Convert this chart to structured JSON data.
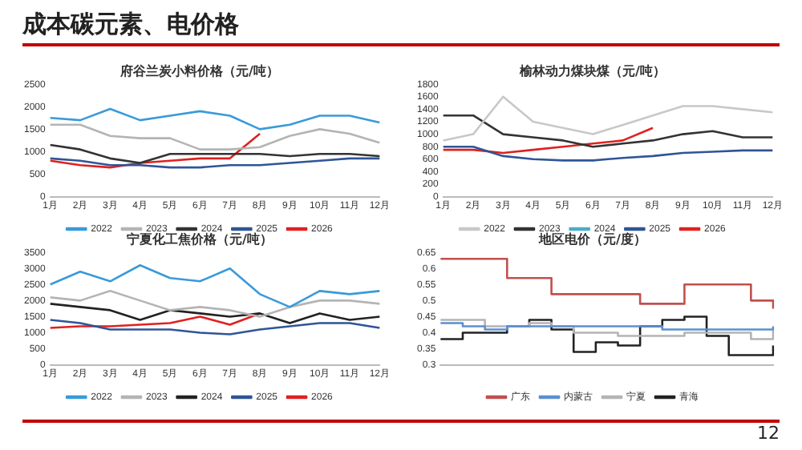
{
  "chart_data": [
    {
      "type": "other",
      "title": "成本碳元素、电价格",
      "annotations": [
        "12"
      ]
    },
    {
      "type": "line",
      "title": "府谷兰炭小料价格（元/吨）",
      "categories": [
        "1月",
        "2月",
        "3月",
        "4月",
        "5月",
        "6月",
        "7月",
        "8月",
        "9月",
        "10月",
        "11月",
        "12月"
      ],
      "ylim": [
        0,
        2500
      ],
      "yticks": [
        0,
        500,
        1000,
        1500,
        2000,
        2500
      ],
      "marker": "none",
      "legend": "bottom",
      "series": [
        {
          "name": "2022",
          "color": "#3a9ad9",
          "values": [
            1750,
            1700,
            1950,
            1700,
            1800,
            1900,
            1800,
            1500,
            1600,
            1800,
            1800,
            1650
          ]
        },
        {
          "name": "2023",
          "color": "#b4b4b4",
          "values": [
            1600,
            1600,
            1350,
            1300,
            1300,
            1050,
            1050,
            1100,
            1350,
            1500,
            1400,
            1200
          ]
        },
        {
          "name": "2024",
          "color": "#333333",
          "values": [
            1150,
            1050,
            850,
            750,
            950,
            950,
            950,
            950,
            900,
            950,
            950,
            900
          ]
        },
        {
          "name": "2025",
          "color": "#2f5597",
          "values": [
            850,
            800,
            700,
            700,
            650,
            650,
            700,
            700,
            750,
            800,
            850,
            850
          ]
        },
        {
          "name": "2026",
          "color": "#e02020",
          "values": [
            800,
            700,
            650,
            750,
            800,
            850,
            850,
            1400,
            null,
            null,
            null,
            null
          ]
        }
      ]
    },
    {
      "type": "line",
      "title": "榆林动力煤块煤（元/吨）",
      "categories": [
        "1月",
        "2月",
        "3月",
        "4月",
        "5月",
        "6月",
        "7月",
        "8月",
        "9月",
        "10月",
        "11月",
        "12月"
      ],
      "ylim": [
        0,
        1800
      ],
      "yticks": [
        0,
        200,
        400,
        600,
        800,
        1000,
        1200,
        1400,
        1600,
        1800
      ],
      "marker": "none",
      "legend": "bottom",
      "series": [
        {
          "name": "2022",
          "color": "#c8c8c8",
          "values": [
            900,
            1000,
            1600,
            1200,
            1100,
            1000,
            1150,
            1300,
            1450,
            1450,
            1400,
            1350
          ]
        },
        {
          "name": "2023",
          "color": "#333333",
          "values": [
            1300,
            1300,
            1000,
            950,
            900,
            800,
            850,
            900,
            1000,
            1050,
            950,
            950
          ]
        },
        {
          "name": "2024",
          "color": "#4bacc6",
          "values": [
            null,
            null,
            null,
            null,
            null,
            null,
            null,
            null,
            null,
            null,
            null,
            null
          ]
        },
        {
          "name": "2025",
          "color": "#2f5597",
          "values": [
            800,
            800,
            650,
            600,
            580,
            580,
            620,
            650,
            700,
            720,
            740,
            740
          ]
        },
        {
          "name": "2026",
          "color": "#e02020",
          "values": [
            750,
            750,
            700,
            750,
            800,
            850,
            900,
            1100,
            null,
            null,
            null,
            null
          ]
        }
      ]
    },
    {
      "type": "line",
      "title": "宁夏化工焦价格（元/吨）",
      "categories": [
        "1月",
        "2月",
        "3月",
        "4月",
        "5月",
        "6月",
        "7月",
        "8月",
        "9月",
        "10月",
        "11月",
        "12月"
      ],
      "ylim": [
        0,
        3500
      ],
      "yticks": [
        0,
        500,
        1000,
        1500,
        2000,
        2500,
        3000,
        3500
      ],
      "marker": "none",
      "legend": "bottom",
      "series": [
        {
          "name": "2022",
          "color": "#3a9ad9",
          "values": [
            2500,
            2900,
            2600,
            3100,
            2700,
            2600,
            3000,
            2200,
            1800,
            2300,
            2200,
            2300
          ]
        },
        {
          "name": "2023",
          "color": "#b4b4b4",
          "values": [
            2100,
            2000,
            2300,
            2000,
            1700,
            1800,
            1700,
            1500,
            1800,
            2000,
            2000,
            1900
          ]
        },
        {
          "name": "2024",
          "color": "#222222",
          "values": [
            1900,
            1800,
            1700,
            1400,
            1700,
            1600,
            1500,
            1600,
            1300,
            1600,
            1400,
            1500
          ]
        },
        {
          "name": "2025",
          "color": "#2f5597",
          "values": [
            1400,
            1300,
            1100,
            1100,
            1100,
            1000,
            950,
            1100,
            1200,
            1300,
            1300,
            1150
          ]
        },
        {
          "name": "2026",
          "color": "#e02020",
          "values": [
            1150,
            1200,
            1200,
            1250,
            1300,
            1500,
            1250,
            1600,
            null,
            null,
            null,
            null
          ]
        }
      ]
    },
    {
      "type": "step",
      "title": "地区电价（元/度）",
      "categories": [
        null,
        null,
        null,
        null,
        null,
        null,
        null,
        null,
        null,
        null,
        null,
        null,
        null,
        null,
        null,
        null
      ],
      "ylim": [
        0.3,
        0.65
      ],
      "yticks": [
        0.3,
        0.35,
        0.4,
        0.45,
        0.5,
        0.55,
        0.6,
        0.65
      ],
      "marker": "none",
      "legend": "bottom",
      "series": [
        {
          "name": "广东",
          "color": "#c0504d",
          "values": [
            0.63,
            0.63,
            0.63,
            0.57,
            0.57,
            0.52,
            0.52,
            0.52,
            0.52,
            0.49,
            0.49,
            0.55,
            0.55,
            0.55,
            0.5,
            0.475
          ]
        },
        {
          "name": "内蒙古",
          "color": "#5b8fd0",
          "values": [
            0.43,
            0.42,
            0.41,
            0.42,
            0.42,
            0.42,
            0.42,
            0.42,
            0.42,
            0.42,
            0.41,
            0.41,
            0.41,
            0.41,
            0.41,
            0.42
          ]
        },
        {
          "name": "宁夏",
          "color": "#b4b4b4",
          "values": [
            0.44,
            0.44,
            0.42,
            0.42,
            0.43,
            0.42,
            0.4,
            0.4,
            0.39,
            0.39,
            0.39,
            0.4,
            0.4,
            0.4,
            0.38,
            0.41
          ]
        },
        {
          "name": "青海",
          "color": "#222222",
          "values": [
            0.38,
            0.4,
            0.4,
            0.42,
            0.44,
            0.41,
            0.34,
            0.37,
            0.36,
            0.42,
            0.44,
            0.45,
            0.39,
            0.33,
            0.33,
            0.36
          ]
        }
      ]
    }
  ]
}
